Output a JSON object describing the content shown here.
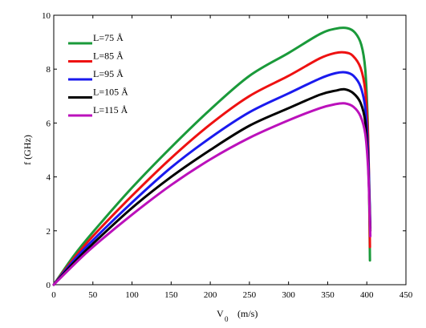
{
  "chart_data": {
    "type": "line",
    "xlabel": "V",
    "xlabel_subscript": "0",
    "xlabel_unit": "(m/s)",
    "ylabel": "f (GHz)",
    "xlim": [
      0,
      450
    ],
    "ylim": [
      0,
      10
    ],
    "xticks": [
      0,
      50,
      100,
      150,
      200,
      250,
      300,
      350,
      400,
      450
    ],
    "yticks": [
      0,
      2,
      4,
      6,
      8,
      10
    ],
    "grid": false,
    "legend_position": "top-left",
    "series": [
      {
        "name": "L=75 Å",
        "color": "#1a9a3a",
        "points": [
          [
            0,
            0
          ],
          [
            25,
            1.05
          ],
          [
            50,
            1.95
          ],
          [
            100,
            3.6
          ],
          [
            150,
            5.1
          ],
          [
            200,
            6.5
          ],
          [
            250,
            7.75
          ],
          [
            300,
            8.6
          ],
          [
            340,
            9.3
          ],
          [
            360,
            9.5
          ],
          [
            375,
            9.52
          ],
          [
            385,
            9.35
          ],
          [
            393,
            8.9
          ],
          [
            398,
            8.0
          ],
          [
            401,
            6.2
          ],
          [
            402.5,
            4.2
          ],
          [
            403.5,
            2.2
          ],
          [
            404,
            0.9
          ]
        ]
      },
      {
        "name": "L=85 Å",
        "color": "#ee1111",
        "points": [
          [
            0,
            0
          ],
          [
            25,
            0.95
          ],
          [
            50,
            1.8
          ],
          [
            100,
            3.3
          ],
          [
            150,
            4.7
          ],
          [
            200,
            5.95
          ],
          [
            250,
            7.0
          ],
          [
            300,
            7.75
          ],
          [
            340,
            8.4
          ],
          [
            360,
            8.6
          ],
          [
            372,
            8.62
          ],
          [
            382,
            8.5
          ],
          [
            392,
            8.05
          ],
          [
            398,
            7.2
          ],
          [
            401.5,
            5.5
          ],
          [
            403,
            3.5
          ],
          [
            404,
            1.4
          ]
        ]
      },
      {
        "name": "L=95 Å",
        "color": "#1a1aee",
        "points": [
          [
            0,
            0
          ],
          [
            25,
            0.88
          ],
          [
            50,
            1.65
          ],
          [
            100,
            3.05
          ],
          [
            150,
            4.35
          ],
          [
            200,
            5.45
          ],
          [
            250,
            6.4
          ],
          [
            300,
            7.1
          ],
          [
            340,
            7.65
          ],
          [
            360,
            7.85
          ],
          [
            373,
            7.88
          ],
          [
            383,
            7.75
          ],
          [
            392,
            7.35
          ],
          [
            398,
            6.55
          ],
          [
            401.5,
            5.0
          ],
          [
            403.5,
            3.2
          ],
          [
            404.5,
            2.1
          ]
        ]
      },
      {
        "name": "L=105 Å",
        "color": "#000000",
        "points": [
          [
            0,
            0
          ],
          [
            25,
            0.8
          ],
          [
            50,
            1.52
          ],
          [
            100,
            2.85
          ],
          [
            150,
            4.0
          ],
          [
            200,
            5.0
          ],
          [
            250,
            5.9
          ],
          [
            300,
            6.55
          ],
          [
            340,
            7.05
          ],
          [
            360,
            7.2
          ],
          [
            372,
            7.25
          ],
          [
            383,
            7.1
          ],
          [
            392,
            6.75
          ],
          [
            398,
            6.05
          ],
          [
            401.5,
            4.6
          ],
          [
            403.5,
            3.0
          ],
          [
            404.5,
            2.0
          ]
        ]
      },
      {
        "name": "L=115 Å",
        "color": "#bb11bb",
        "points": [
          [
            0,
            0
          ],
          [
            25,
            0.72
          ],
          [
            50,
            1.4
          ],
          [
            100,
            2.6
          ],
          [
            150,
            3.7
          ],
          [
            200,
            4.65
          ],
          [
            250,
            5.45
          ],
          [
            300,
            6.1
          ],
          [
            340,
            6.55
          ],
          [
            360,
            6.7
          ],
          [
            372,
            6.73
          ],
          [
            383,
            6.6
          ],
          [
            392,
            6.25
          ],
          [
            398,
            5.6
          ],
          [
            401.5,
            4.4
          ],
          [
            403.5,
            2.8
          ],
          [
            404.5,
            1.8
          ]
        ]
      }
    ]
  }
}
